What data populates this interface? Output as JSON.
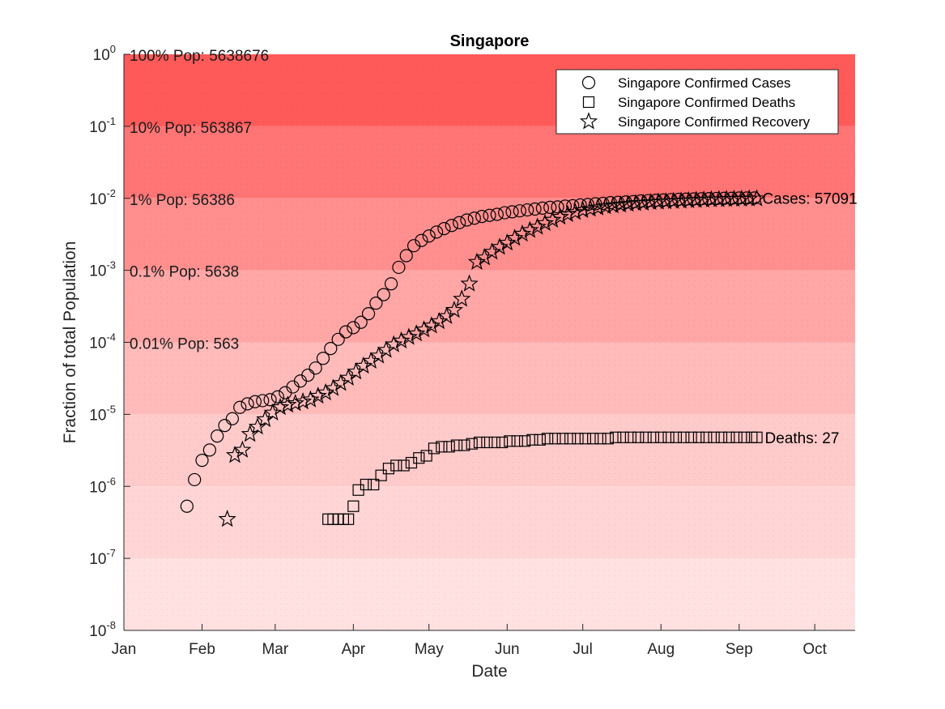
{
  "chart_data": {
    "type": "scatter",
    "title": "Singapore",
    "xlabel": "Date",
    "ylabel": "Fraction of total Population",
    "yscale": "log",
    "ylim": [
      1e-08,
      1
    ],
    "xlim": [
      "2020-01-01",
      "2020-10-17"
    ],
    "x_ticks": [
      "Jan",
      "Feb",
      "Mar",
      "Apr",
      "May",
      "Jun",
      "Jul",
      "Aug",
      "Sep",
      "Oct"
    ],
    "y_ticks": [
      {
        "base": "10",
        "exp": "-8"
      },
      {
        "base": "10",
        "exp": "-7"
      },
      {
        "base": "10",
        "exp": "-6"
      },
      {
        "base": "10",
        "exp": "-5"
      },
      {
        "base": "10",
        "exp": "-4"
      },
      {
        "base": "10",
        "exp": "-3"
      },
      {
        "base": "10",
        "exp": "-2"
      },
      {
        "base": "10",
        "exp": "-1"
      },
      {
        "base": "10",
        "exp": "0"
      }
    ],
    "grid": false,
    "legend_position": "top-right",
    "background_bands": [
      {
        "from": 0.1,
        "to": 1,
        "color": "#ff5a5a",
        "label": "100% Pop: 5638676"
      },
      {
        "from": 0.01,
        "to": 0.1,
        "color": "#ff7474",
        "label": "10% Pop: 563867"
      },
      {
        "from": 0.001,
        "to": 0.01,
        "color": "#ff8f8f",
        "label": "1% Pop: 56386"
      },
      {
        "from": 0.0001,
        "to": 0.001,
        "color": "#ffa6a6",
        "label": "0.1% Pop: 5638"
      },
      {
        "from": 1e-05,
        "to": 0.0001,
        "color": "#ffbaba",
        "label": "0.01% Pop: 563"
      },
      {
        "from": 1e-06,
        "to": 1e-05,
        "color": "#ffcaca",
        "label": ""
      },
      {
        "from": 1e-07,
        "to": 1e-06,
        "color": "#ffd5d5",
        "label": ""
      },
      {
        "from": 1e-08,
        "to": 1e-07,
        "color": "#ffe1e1",
        "label": ""
      }
    ],
    "series": [
      {
        "name": "Singapore Confirmed Cases",
        "marker": "circle",
        "end_label": "Cases: 57091",
        "points": [
          [
            "2020-01-26",
            5.3e-07
          ],
          [
            "2020-01-29",
            1.24e-06
          ],
          [
            "2020-02-01",
            2.3e-06
          ],
          [
            "2020-02-04",
            3.2e-06
          ],
          [
            "2020-02-07",
            5e-06
          ],
          [
            "2020-02-10",
            7e-06
          ],
          [
            "2020-02-13",
            8.7e-06
          ],
          [
            "2020-02-16",
            1.25e-05
          ],
          [
            "2020-02-19",
            1.4e-05
          ],
          [
            "2020-02-22",
            1.5e-05
          ],
          [
            "2020-02-25",
            1.55e-05
          ],
          [
            "2020-02-28",
            1.6e-05
          ],
          [
            "2020-03-02",
            1.75e-05
          ],
          [
            "2020-03-05",
            2e-05
          ],
          [
            "2020-03-08",
            2.4e-05
          ],
          [
            "2020-03-11",
            2.9e-05
          ],
          [
            "2020-03-14",
            3.5e-05
          ],
          [
            "2020-03-17",
            4.4e-05
          ],
          [
            "2020-03-20",
            6e-05
          ],
          [
            "2020-03-23",
            8.2e-05
          ],
          [
            "2020-03-26",
            0.00011
          ],
          [
            "2020-03-29",
            0.00014
          ],
          [
            "2020-04-01",
            0.00016
          ],
          [
            "2020-04-04",
            0.00019
          ],
          [
            "2020-04-07",
            0.00025
          ],
          [
            "2020-04-10",
            0.00035
          ],
          [
            "2020-04-13",
            0.00046
          ],
          [
            "2020-04-16",
            0.00065
          ],
          [
            "2020-04-19",
            0.0011
          ],
          [
            "2020-04-22",
            0.0016
          ],
          [
            "2020-04-25",
            0.0022
          ],
          [
            "2020-04-28",
            0.0026
          ],
          [
            "2020-05-01",
            0.003
          ],
          [
            "2020-05-04",
            0.0034
          ],
          [
            "2020-05-07",
            0.0038
          ],
          [
            "2020-05-10",
            0.0042
          ],
          [
            "2020-05-13",
            0.0046
          ],
          [
            "2020-05-16",
            0.005
          ],
          [
            "2020-05-19",
            0.0053
          ],
          [
            "2020-05-22",
            0.0056
          ],
          [
            "2020-05-25",
            0.0058
          ],
          [
            "2020-05-28",
            0.006
          ],
          [
            "2020-05-31",
            0.0063
          ],
          [
            "2020-06-03",
            0.0065
          ],
          [
            "2020-06-06",
            0.0067
          ],
          [
            "2020-06-09",
            0.0069
          ],
          [
            "2020-06-12",
            0.0071
          ],
          [
            "2020-06-15",
            0.0073
          ],
          [
            "2020-06-18",
            0.0075
          ],
          [
            "2020-06-21",
            0.0076
          ],
          [
            "2020-06-24",
            0.0078
          ],
          [
            "2020-06-27",
            0.0079
          ],
          [
            "2020-06-30",
            0.0081
          ],
          [
            "2020-07-03",
            0.0082
          ],
          [
            "2020-07-06",
            0.0084
          ],
          [
            "2020-07-09",
            0.0085
          ],
          [
            "2020-07-12",
            0.0087
          ],
          [
            "2020-07-15",
            0.0088
          ],
          [
            "2020-07-18",
            0.0089
          ],
          [
            "2020-07-21",
            0.009
          ],
          [
            "2020-07-24",
            0.0092
          ],
          [
            "2020-07-27",
            0.0093
          ],
          [
            "2020-07-30",
            0.0094
          ],
          [
            "2020-08-02",
            0.0095
          ],
          [
            "2020-08-05",
            0.0096
          ],
          [
            "2020-08-08",
            0.0097
          ],
          [
            "2020-08-11",
            0.00975
          ],
          [
            "2020-08-14",
            0.0098
          ],
          [
            "2020-08-17",
            0.00985
          ],
          [
            "2020-08-20",
            0.0099
          ],
          [
            "2020-08-23",
            0.00995
          ],
          [
            "2020-08-26",
            0.01
          ],
          [
            "2020-08-29",
            0.01
          ],
          [
            "2020-09-01",
            0.0101
          ],
          [
            "2020-09-04",
            0.0101
          ],
          [
            "2020-09-07",
            0.0101
          ]
        ]
      },
      {
        "name": "Singapore Confirmed Deaths",
        "marker": "square",
        "end_label": "Deaths: 27",
        "points": [
          [
            "2020-03-22",
            3.5e-07
          ],
          [
            "2020-03-24",
            3.5e-07
          ],
          [
            "2020-03-26",
            3.5e-07
          ],
          [
            "2020-03-28",
            3.5e-07
          ],
          [
            "2020-03-30",
            3.5e-07
          ],
          [
            "2020-04-01",
            5.3e-07
          ],
          [
            "2020-04-03",
            8.9e-07
          ],
          [
            "2020-04-06",
            1.06e-06
          ],
          [
            "2020-04-09",
            1.06e-06
          ],
          [
            "2020-04-12",
            1.42e-06
          ],
          [
            "2020-04-15",
            1.77e-06
          ],
          [
            "2020-04-18",
            1.95e-06
          ],
          [
            "2020-04-21",
            1.95e-06
          ],
          [
            "2020-04-24",
            2.13e-06
          ],
          [
            "2020-04-27",
            2.48e-06
          ],
          [
            "2020-04-30",
            2.66e-06
          ],
          [
            "2020-05-03",
            3.37e-06
          ],
          [
            "2020-05-06",
            3.55e-06
          ],
          [
            "2020-05-09",
            3.55e-06
          ],
          [
            "2020-05-12",
            3.72e-06
          ],
          [
            "2020-05-15",
            3.72e-06
          ],
          [
            "2020-05-18",
            3.9e-06
          ],
          [
            "2020-05-21",
            4.08e-06
          ],
          [
            "2020-05-24",
            4.08e-06
          ],
          [
            "2020-05-27",
            4.08e-06
          ],
          [
            "2020-05-30",
            4.08e-06
          ],
          [
            "2020-06-02",
            4.26e-06
          ],
          [
            "2020-06-05",
            4.26e-06
          ],
          [
            "2020-06-08",
            4.26e-06
          ],
          [
            "2020-06-11",
            4.43e-06
          ],
          [
            "2020-06-14",
            4.43e-06
          ],
          [
            "2020-06-17",
            4.61e-06
          ],
          [
            "2020-06-20",
            4.61e-06
          ],
          [
            "2020-06-23",
            4.61e-06
          ],
          [
            "2020-06-26",
            4.61e-06
          ],
          [
            "2020-06-29",
            4.61e-06
          ],
          [
            "2020-07-02",
            4.61e-06
          ],
          [
            "2020-07-05",
            4.61e-06
          ],
          [
            "2020-07-08",
            4.61e-06
          ],
          [
            "2020-07-11",
            4.61e-06
          ],
          [
            "2020-07-14",
            4.79e-06
          ],
          [
            "2020-07-17",
            4.79e-06
          ],
          [
            "2020-07-20",
            4.79e-06
          ],
          [
            "2020-07-23",
            4.79e-06
          ],
          [
            "2020-07-26",
            4.79e-06
          ],
          [
            "2020-07-29",
            4.79e-06
          ],
          [
            "2020-08-01",
            4.79e-06
          ],
          [
            "2020-08-04",
            4.79e-06
          ],
          [
            "2020-08-07",
            4.79e-06
          ],
          [
            "2020-08-10",
            4.79e-06
          ],
          [
            "2020-08-13",
            4.79e-06
          ],
          [
            "2020-08-16",
            4.79e-06
          ],
          [
            "2020-08-19",
            4.79e-06
          ],
          [
            "2020-08-22",
            4.79e-06
          ],
          [
            "2020-08-25",
            4.79e-06
          ],
          [
            "2020-08-28",
            4.79e-06
          ],
          [
            "2020-08-31",
            4.79e-06
          ],
          [
            "2020-09-03",
            4.79e-06
          ],
          [
            "2020-09-06",
            4.79e-06
          ],
          [
            "2020-09-08",
            4.79e-06
          ]
        ]
      },
      {
        "name": "Singapore Confirmed Recovery",
        "marker": "star",
        "end_label": "",
        "points": [
          [
            "2020-02-11",
            3.5e-07
          ],
          [
            "2020-02-14",
            2.7e-06
          ],
          [
            "2020-02-17",
            3.2e-06
          ],
          [
            "2020-02-20",
            5.3e-06
          ],
          [
            "2020-02-23",
            6.7e-06
          ],
          [
            "2020-02-26",
            8.5e-06
          ],
          [
            "2020-02-29",
            1.05e-05
          ],
          [
            "2020-03-03",
            1.25e-05
          ],
          [
            "2020-03-06",
            1.35e-05
          ],
          [
            "2020-03-09",
            1.42e-05
          ],
          [
            "2020-03-12",
            1.5e-05
          ],
          [
            "2020-03-15",
            1.6e-05
          ],
          [
            "2020-03-18",
            1.8e-05
          ],
          [
            "2020-03-21",
            2e-05
          ],
          [
            "2020-03-24",
            2.3e-05
          ],
          [
            "2020-03-27",
            2.7e-05
          ],
          [
            "2020-03-30",
            3.2e-05
          ],
          [
            "2020-04-02",
            3.9e-05
          ],
          [
            "2020-04-05",
            4.7e-05
          ],
          [
            "2020-04-08",
            5.5e-05
          ],
          [
            "2020-04-11",
            6.5e-05
          ],
          [
            "2020-04-14",
            7.8e-05
          ],
          [
            "2020-04-17",
            9.3e-05
          ],
          [
            "2020-04-20",
            0.000105
          ],
          [
            "2020-04-23",
            0.000118
          ],
          [
            "2020-04-26",
            0.000132
          ],
          [
            "2020-04-29",
            0.00015
          ],
          [
            "2020-05-02",
            0.00017
          ],
          [
            "2020-05-05",
            0.000195
          ],
          [
            "2020-05-08",
            0.00023
          ],
          [
            "2020-05-11",
            0.00028
          ],
          [
            "2020-05-14",
            0.0004
          ],
          [
            "2020-05-17",
            0.00065
          ],
          [
            "2020-05-20",
            0.0013
          ],
          [
            "2020-05-23",
            0.0015
          ],
          [
            "2020-05-26",
            0.0018
          ],
          [
            "2020-05-29",
            0.0021
          ],
          [
            "2020-06-01",
            0.0024
          ],
          [
            "2020-06-04",
            0.0028
          ],
          [
            "2020-06-07",
            0.0032
          ],
          [
            "2020-06-10",
            0.0036
          ],
          [
            "2020-06-13",
            0.004
          ],
          [
            "2020-06-16",
            0.0045
          ],
          [
            "2020-06-19",
            0.005
          ],
          [
            "2020-06-22",
            0.0055
          ],
          [
            "2020-06-25",
            0.006
          ],
          [
            "2020-06-28",
            0.0064
          ],
          [
            "2020-07-01",
            0.0068
          ],
          [
            "2020-07-04",
            0.0071
          ],
          [
            "2020-07-07",
            0.0074
          ],
          [
            "2020-07-10",
            0.0077
          ],
          [
            "2020-07-13",
            0.0079
          ],
          [
            "2020-07-16",
            0.0081
          ],
          [
            "2020-07-19",
            0.0083
          ],
          [
            "2020-07-22",
            0.0085
          ],
          [
            "2020-07-25",
            0.0086
          ],
          [
            "2020-07-28",
            0.0088
          ],
          [
            "2020-07-31",
            0.0089
          ],
          [
            "2020-08-03",
            0.009
          ],
          [
            "2020-08-06",
            0.0091
          ],
          [
            "2020-08-09",
            0.0092
          ],
          [
            "2020-08-12",
            0.0093
          ],
          [
            "2020-08-15",
            0.0094
          ],
          [
            "2020-08-18",
            0.0095
          ],
          [
            "2020-08-21",
            0.0096
          ],
          [
            "2020-08-24",
            0.00965
          ],
          [
            "2020-08-27",
            0.0097
          ],
          [
            "2020-08-30",
            0.00975
          ],
          [
            "2020-09-02",
            0.0098
          ],
          [
            "2020-09-05",
            0.00985
          ],
          [
            "2020-09-08",
            0.0099
          ]
        ]
      }
    ]
  }
}
